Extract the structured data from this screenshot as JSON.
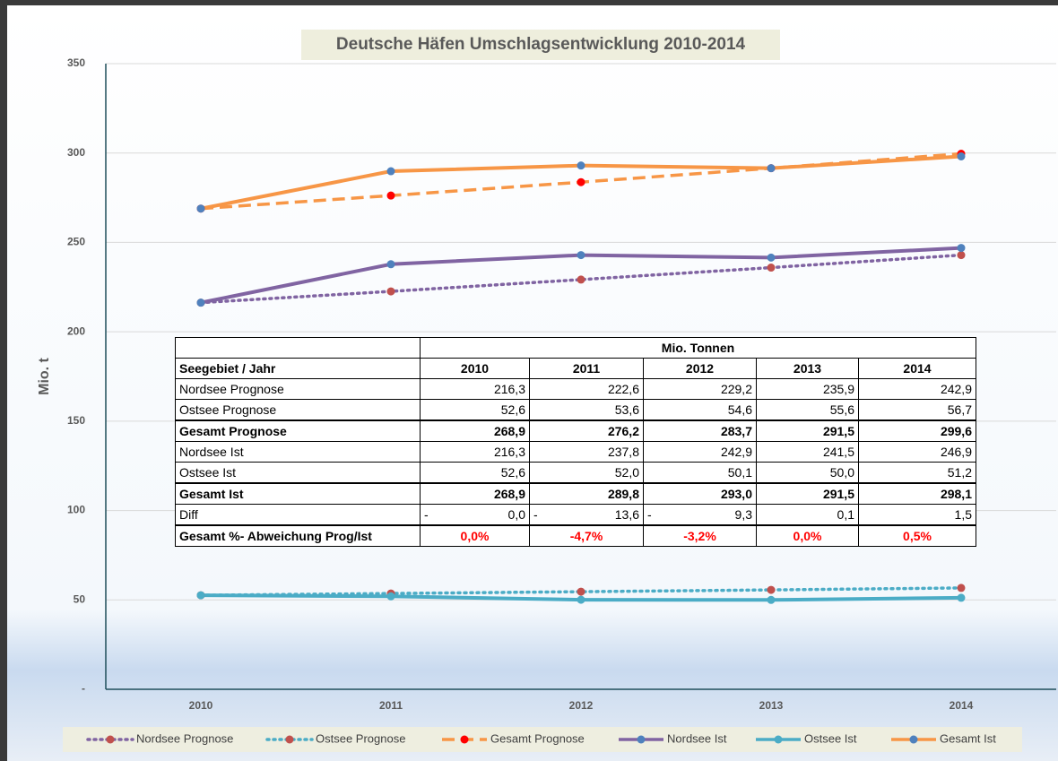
{
  "chart_data": {
    "type": "line",
    "title": "Deutsche Häfen Umschlagsentwicklung 2010-2014",
    "y_label": "Mio. t",
    "categories": [
      "2010",
      "2011",
      "2012",
      "2013",
      "2014"
    ],
    "ylim": [
      0,
      350
    ],
    "yticks": [
      {
        "value": 0,
        "label": "-"
      },
      50,
      100,
      150,
      200,
      250,
      300,
      350
    ],
    "grid": true,
    "legend": "bottom",
    "series": [
      {
        "name": "Nordsee Prognose",
        "color": "#8064a2",
        "marker_color": "#c0504d",
        "dash": "dotted",
        "values": [
          216.3,
          222.6,
          229.2,
          235.9,
          242.9
        ]
      },
      {
        "name": "Ostsee Prognose",
        "color": "#4bacc6",
        "marker_color": "#c0504d",
        "dash": "dotted",
        "values": [
          52.6,
          53.6,
          54.6,
          55.6,
          56.7
        ]
      },
      {
        "name": "Gesamt Prognose",
        "color": "#f79646",
        "marker_color": "#ff0000",
        "dash": "dashed",
        "values": [
          268.9,
          276.2,
          283.7,
          291.5,
          299.6
        ]
      },
      {
        "name": "Nordsee Ist",
        "color": "#8064a2",
        "marker_color": "#4f81bd",
        "dash": "solid",
        "values": [
          216.3,
          237.8,
          242.9,
          241.5,
          246.9
        ]
      },
      {
        "name": "Ostsee Ist",
        "color": "#4bacc6",
        "marker_color": "#4bacc6",
        "dash": "solid",
        "values": [
          52.6,
          52.0,
          50.1,
          50.0,
          51.2
        ]
      },
      {
        "name": "Gesamt Ist",
        "color": "#f79646",
        "marker_color": "#4f81bd",
        "dash": "solid",
        "values": [
          268.9,
          289.8,
          293.0,
          291.5,
          298.1
        ]
      }
    ]
  },
  "table": {
    "caption": "Mio. Tonnen",
    "header": [
      "Seegebiet / Jahr",
      "2010",
      "2011",
      "2012",
      "2013",
      "2014"
    ],
    "rows": [
      {
        "label": "Nordsee Prognose",
        "style": "plain",
        "cells": [
          "216,3",
          "222,6",
          "229,2",
          "235,9",
          "242,9"
        ]
      },
      {
        "label": "Ostsee Prognose",
        "style": "plain",
        "cells": [
          "52,6",
          "53,6",
          "54,6",
          "55,6",
          "56,7"
        ]
      },
      {
        "label": "Gesamt Prognose",
        "style": "bold",
        "cells": [
          "268,9",
          "276,2",
          "283,7",
          "291,5",
          "299,6"
        ]
      },
      {
        "label": "Nordsee Ist",
        "style": "plain",
        "cells": [
          "216,3",
          "237,8",
          "242,9",
          "241,5",
          "246,9"
        ]
      },
      {
        "label": "Ostsee Ist",
        "style": "plain",
        "cells": [
          "52,6",
          "52,0",
          "50,1",
          "50,0",
          "51,2"
        ]
      },
      {
        "label": "Gesamt Ist",
        "style": "bold",
        "cells": [
          "268,9",
          "289,8",
          "293,0",
          "291,5",
          "298,1"
        ]
      },
      {
        "label": "Diff",
        "style": "plain",
        "cells": [
          [
            "-",
            "0,0"
          ],
          [
            "-",
            "13,6"
          ],
          [
            "-",
            "9,3"
          ],
          [
            "0,1"
          ],
          [
            "1,5"
          ]
        ]
      },
      {
        "label": "Gesamt  %- Abweichung Prog/Ist",
        "style": "bold-red",
        "cells": [
          "0,0%",
          "-4,7%",
          "-3,2%",
          "0,0%",
          "0,5%"
        ]
      }
    ]
  }
}
